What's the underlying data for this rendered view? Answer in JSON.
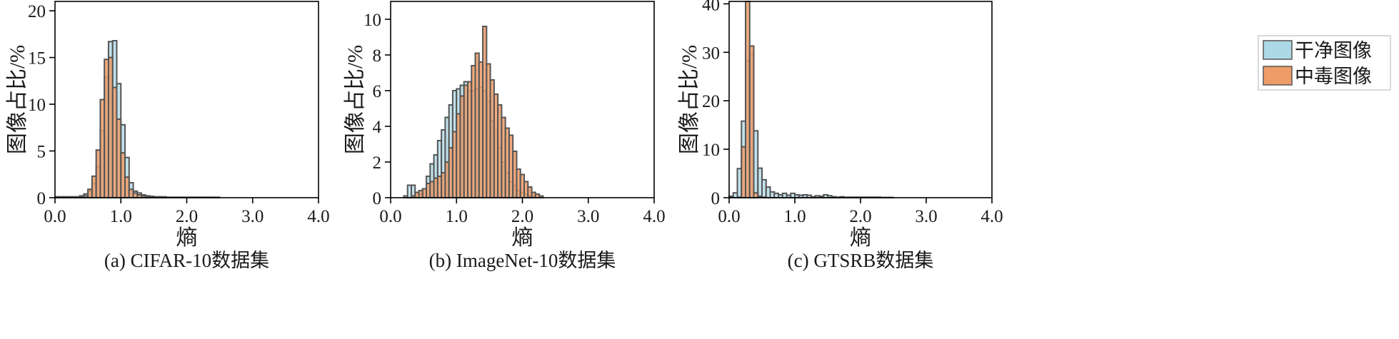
{
  "colors": {
    "clean_fill": "#add8e6",
    "poison_fill": "#ee9c68",
    "bar_edge": "#555555",
    "axis": "#000000"
  },
  "legend": {
    "placement": "right",
    "items": [
      {
        "label": "干净图像",
        "color": "#add8e6"
      },
      {
        "label": "中毒图像",
        "color": "#ee9c68"
      }
    ]
  },
  "chart_data": [
    {
      "type": "bar",
      "subtype": "overlaid histogram",
      "caption": "(a) CIFAR-10数据集",
      "xlabel": "熵",
      "ylabel": "图像占比/%",
      "xlim": [
        0,
        4.0
      ],
      "ylim": [
        0,
        21
      ],
      "xticks": [
        0,
        1,
        2,
        3,
        4
      ],
      "xtick_labels": [
        "0.0",
        "1.0",
        "2.0",
        "3.0",
        "4.0"
      ],
      "yticks": [
        0,
        5,
        10,
        15,
        20
      ],
      "ytick_labels": [
        "0",
        "5",
        "10",
        "15",
        "20"
      ],
      "grid": false,
      "bin_start": 0,
      "bin_width": 0.0625,
      "series": [
        {
          "name": "干净图像",
          "values": [
            0.1,
            0.1,
            0.1,
            0.1,
            0.1,
            0.1,
            0.2,
            0.4,
            0.7,
            1.5,
            3.3,
            7.2,
            12.9,
            16.7,
            16.8,
            12.2,
            7.8,
            4.3,
            1.6,
            0.7,
            0.5,
            0.3,
            0.2,
            0.15,
            0.1,
            0.1,
            0.1,
            0.05,
            0.05,
            0.05,
            0.05,
            0.05,
            0.05,
            0.05,
            0.05,
            0.05,
            0.05,
            0.05,
            0.05,
            0.05
          ]
        },
        {
          "name": "中毒图像",
          "values": [
            0.05,
            0.05,
            0.05,
            0.05,
            0.05,
            0.05,
            0.1,
            0.2,
            0.9,
            2.3,
            5.1,
            10.5,
            14.8,
            15.0,
            11.8,
            8.4,
            4.8,
            2.2,
            0.9,
            0.5,
            0.3,
            0.2,
            0.1,
            0.05,
            0.05,
            0.05,
            0.05,
            0,
            0,
            0,
            0,
            0,
            0,
            0,
            0,
            0,
            0,
            0,
            0,
            0
          ]
        }
      ]
    },
    {
      "type": "bar",
      "subtype": "overlaid histogram",
      "caption": "(b) ImageNet-10数据集",
      "xlabel": "熵",
      "ylabel": "图像占比/%",
      "xlim": [
        0,
        4.0
      ],
      "ylim": [
        0,
        11
      ],
      "xticks": [
        0,
        1,
        2,
        3,
        4
      ],
      "xtick_labels": [
        "0.0",
        "1.0",
        "2.0",
        "3.0",
        "4.0"
      ],
      "yticks": [
        0,
        2,
        4,
        6,
        8,
        10
      ],
      "ytick_labels": [
        "0",
        "2",
        "4",
        "6",
        "8",
        "10"
      ],
      "grid": false,
      "bin_start": 0.2,
      "bin_width": 0.0571,
      "series": [
        {
          "name": "干净图像",
          "values": [
            0.1,
            0.7,
            0.7,
            0.3,
            0.2,
            0.5,
            1.2,
            1.9,
            2.4,
            3.2,
            3.8,
            4.5,
            5.2,
            6.0,
            6.1,
            6.3,
            6.5,
            6.0,
            6.0,
            6.1,
            6.2,
            6.0,
            5.4,
            4.3,
            3.8,
            2.8,
            2.0,
            1.4,
            0.9,
            0.7,
            0.4,
            0.3,
            0.2,
            0.1,
            0.1,
            0,
            0,
            0,
            0,
            0
          ]
        },
        {
          "name": "中毒图像",
          "values": [
            0,
            0,
            0.1,
            0.3,
            0.4,
            0.5,
            0.8,
            0.9,
            1.1,
            1.2,
            1.4,
            2.0,
            2.8,
            3.7,
            4.7,
            5.7,
            6.3,
            6.5,
            7.4,
            8.1,
            7.6,
            9.6,
            7.5,
            6.6,
            5.8,
            5.2,
            4.5,
            3.9,
            3.5,
            2.6,
            1.6,
            1.3,
            0.9,
            0.6,
            0.3,
            0.2,
            0.1,
            0,
            0,
            0
          ]
        }
      ]
    },
    {
      "type": "bar",
      "subtype": "overlaid histogram",
      "caption": "(c) GTSRB数据集",
      "xlabel": "熵",
      "ylabel": "图像占比/%",
      "xlim": [
        0,
        4.0
      ],
      "ylim": [
        0,
        40.5
      ],
      "xticks": [
        0,
        1,
        2,
        3,
        4
      ],
      "xtick_labels": [
        "0.0",
        "1.0",
        "2.0",
        "3.0",
        "4.0"
      ],
      "yticks": [
        0,
        10,
        20,
        30,
        40
      ],
      "ytick_labels": [
        "0",
        "10",
        "20",
        "30",
        "40"
      ],
      "grid": false,
      "bin_start": 0,
      "bin_width": 0.0625,
      "series": [
        {
          "name": "干净图像",
          "values": [
            0.3,
            1.0,
            6.0,
            15.8,
            28.2,
            29.6,
            13.8,
            6.1,
            3.7,
            2.2,
            1.2,
            0.9,
            0.6,
            0.9,
            0.5,
            0.9,
            0.6,
            0.5,
            0.6,
            0.5,
            0.2,
            0.4,
            0.3,
            0.6,
            0.4,
            0.2,
            0.1,
            0.2,
            0.1,
            0.1,
            0.1,
            0.1,
            0.1,
            0.1,
            0.1,
            0.1,
            0.1,
            0.05,
            0.05,
            0.05
          ]
        },
        {
          "name": "中毒图像",
          "values": [
            0,
            0,
            0.1,
            10.5,
            41,
            31.3,
            1.0,
            0.3,
            0.1,
            0,
            0,
            0,
            0,
            0,
            0,
            0,
            0,
            0,
            0,
            0,
            0,
            0,
            0,
            0,
            0,
            0,
            0,
            0,
            0,
            0,
            0,
            0,
            0,
            0,
            0,
            0,
            0,
            0,
            0,
            0
          ]
        }
      ]
    }
  ]
}
